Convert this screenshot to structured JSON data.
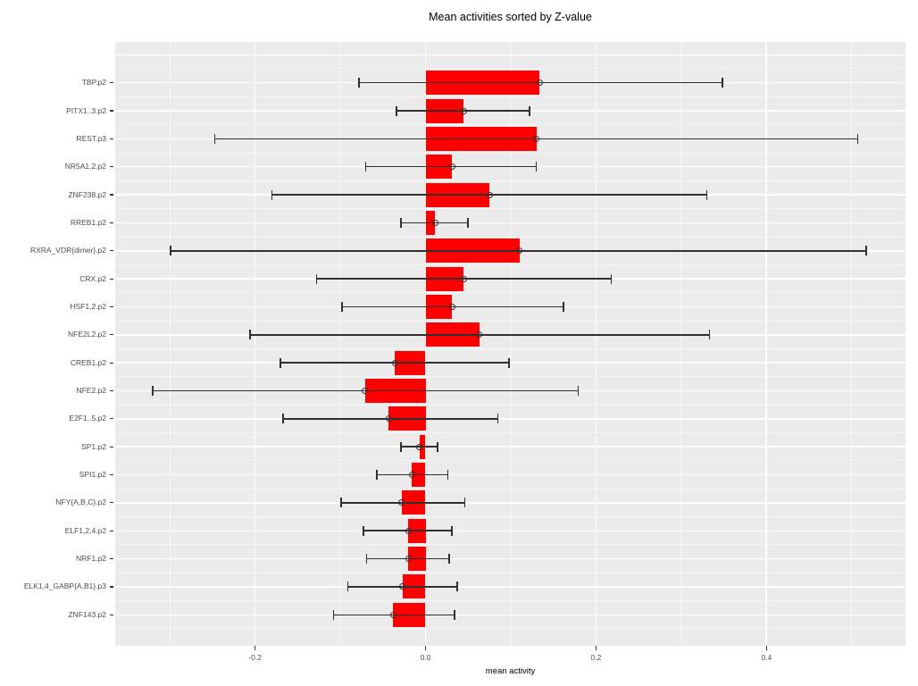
{
  "title": "Mean activities sorted by Z-value",
  "chart_data": {
    "type": "bar",
    "orientation": "horizontal",
    "title": "Mean activities sorted by Z-value",
    "xlabel": "mean activity",
    "ylabel": "",
    "xlim": [
      -0.364,
      0.563
    ],
    "x_ticks": [
      -0.2,
      0,
      0.2,
      0.4
    ],
    "x_tick_labels": [
      "-0.2",
      "0.0",
      "0.2",
      "0.4"
    ],
    "x_minor_gridlines": [
      -0.3,
      -0.1,
      0.1,
      0.3,
      0.5
    ],
    "grid": true,
    "legend": false,
    "categories": [
      "TBP.p2",
      "PITX1..3.p2",
      "REST.p3",
      "NR5A1,2.p2",
      "ZNF238.p2",
      "RREB1.p2",
      "RXRA_VDR{dimer}.p2",
      "CRX.p2",
      "HSF1,2.p2",
      "NFE2L2.p2",
      "CREB1.p2",
      "NFE2.p2",
      "E2F1..5.p2",
      "SP1.p2",
      "SPI1.p2",
      "NFY{A,B,C}.p2",
      "ELF1,2,4.p2",
      "NRF1.p2",
      "ELK1,4_GABP{A,B1}.p3",
      "ZNF143.p2"
    ],
    "series": [
      {
        "name": "mean activity",
        "values": [
          0.134,
          0.045,
          0.13,
          0.031,
          0.075,
          0.011,
          0.11,
          0.045,
          0.031,
          0.063,
          -0.036,
          -0.071,
          -0.043,
          -0.007,
          -0.016,
          -0.028,
          -0.02,
          -0.02,
          -0.027,
          -0.038
        ]
      }
    ],
    "error_low": [
      -0.078,
      -0.034,
      -0.247,
      -0.07,
      -0.18,
      -0.029,
      -0.299,
      -0.128,
      -0.098,
      -0.206,
      -0.17,
      -0.32,
      -0.167,
      -0.029,
      -0.057,
      -0.099,
      -0.073,
      -0.069,
      -0.091,
      -0.108
    ],
    "error_high": [
      0.348,
      0.122,
      0.507,
      0.13,
      0.33,
      0.05,
      0.517,
      0.218,
      0.162,
      0.333,
      0.098,
      0.179,
      0.085,
      0.014,
      0.026,
      0.046,
      0.031,
      0.028,
      0.037,
      0.034
    ],
    "colors": {
      "bar": "#FF0000",
      "panel": "#EBEBEB",
      "grid": "#FFFFFF",
      "errorbar": "#303030",
      "axis_text": "#4D4D4D",
      "title": "#000000"
    }
  }
}
